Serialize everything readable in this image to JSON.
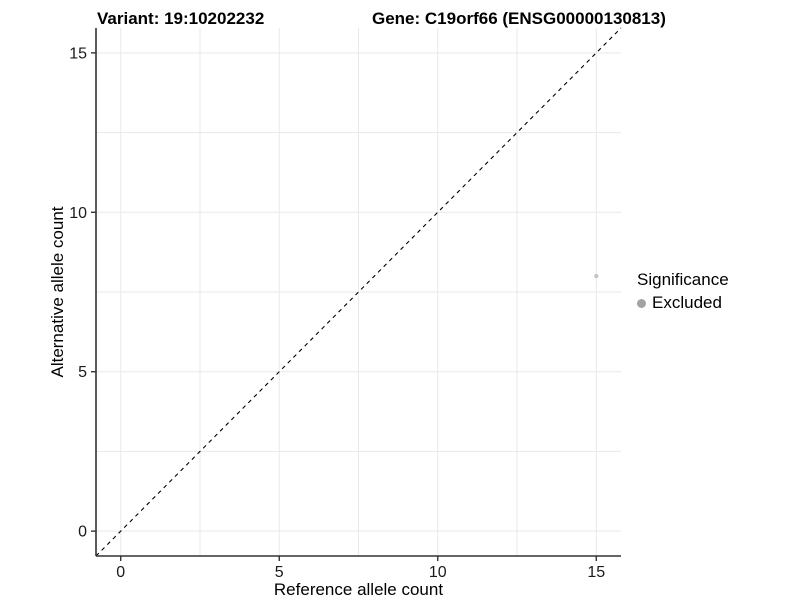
{
  "title": {
    "variant": "Variant: 19:10202232",
    "gene": "Gene: C19orf66 (ENSG00000130813)"
  },
  "x_axis": {
    "label": "Reference allele count"
  },
  "y_axis": {
    "label": "Alternative allele count"
  },
  "legend": {
    "title": "Significance",
    "items": [
      {
        "label": "Excluded",
        "color": "#a3a3a3"
      }
    ]
  },
  "chart_data": {
    "type": "scatter",
    "title": "Variant: 19:10202232 | Gene: C19orf66 (ENSG00000130813)",
    "xlabel": "Reference allele count",
    "ylabel": "Alternative allele count",
    "xlim": [
      -0.78,
      15.78
    ],
    "ylim": [
      -0.78,
      15.78
    ],
    "x_ticks": [
      0,
      5,
      10,
      15
    ],
    "y_ticks": [
      0,
      5,
      10,
      15
    ],
    "x_gridlines": [
      0,
      2.5,
      5,
      7.5,
      10,
      12.5,
      15
    ],
    "y_gridlines": [
      0,
      2.5,
      5,
      7.5,
      10,
      12.5,
      15
    ],
    "grid_color": "#e9e9e9",
    "axis_color": "#333333",
    "tick_label_color": "#1a1a1a",
    "series": [
      {
        "name": "Excluded",
        "color": "#c6c6c6",
        "point_radius": 2.2,
        "points": [
          {
            "x": 15,
            "y": 8
          }
        ]
      }
    ],
    "reference_line": {
      "type": "identity",
      "style": "dashed",
      "color": "#000000"
    },
    "legend_position": "right",
    "grid": true
  }
}
